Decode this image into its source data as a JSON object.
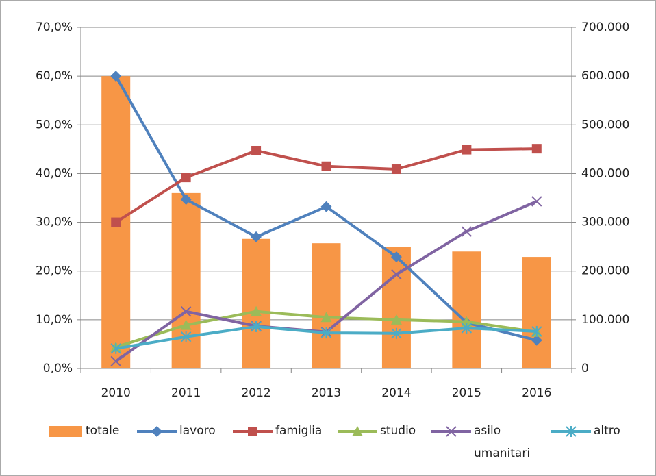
{
  "chart_data": {
    "type": "combo",
    "categories": [
      "2010",
      "2011",
      "2012",
      "2013",
      "2014",
      "2015",
      "2016"
    ],
    "series": [
      {
        "name": "totale",
        "type": "bar",
        "axis": "y2",
        "color": "#F79646",
        "values": [
          600000,
          360000,
          266000,
          257000,
          249000,
          240000,
          229000
        ]
      },
      {
        "name": "lavoro",
        "type": "line",
        "marker": "diamond",
        "color": "#4F81BD",
        "values": [
          60.0,
          34.7,
          27.0,
          33.2,
          22.9,
          9.4,
          5.8
        ]
      },
      {
        "name": "famiglia",
        "type": "line",
        "marker": "square",
        "color": "#C0504D",
        "values": [
          30.0,
          39.2,
          44.7,
          41.5,
          40.9,
          44.9,
          45.1
        ]
      },
      {
        "name": "studio",
        "type": "line",
        "marker": "triangle",
        "color": "#9BBB59",
        "values": [
          4.4,
          8.9,
          11.7,
          10.5,
          10.0,
          9.6,
          7.5
        ]
      },
      {
        "name": "asilo umanitari",
        "type": "line",
        "marker": "x",
        "color": "#8064A2",
        "values": [
          1.5,
          11.7,
          8.7,
          7.5,
          19.3,
          28.1,
          34.3
        ]
      },
      {
        "name": "altro",
        "type": "line",
        "marker": "star",
        "color": "#4BACC6",
        "values": [
          4.1,
          6.5,
          8.6,
          7.3,
          7.2,
          8.3,
          7.6
        ]
      }
    ],
    "ylim": [
      0,
      70
    ],
    "yticks": [
      {
        "value": 0,
        "label": "0,0%"
      },
      {
        "value": 10,
        "label": "10,0%"
      },
      {
        "value": 20,
        "label": "20,0%"
      },
      {
        "value": 30,
        "label": "30,0%"
      },
      {
        "value": 40,
        "label": "40,0%"
      },
      {
        "value": 50,
        "label": "50,0%"
      },
      {
        "value": 60,
        "label": "60,0%"
      },
      {
        "value": 70,
        "label": "70,0%"
      }
    ],
    "y2lim": [
      0,
      700000
    ],
    "y2ticks": [
      0,
      {
        "value": 100000,
        "label": "100.000"
      },
      {
        "value": 200000,
        "label": "200.000"
      },
      {
        "value": 300000,
        "label": "300.000"
      },
      {
        "value": 400000,
        "label": "400.000"
      },
      {
        "value": 500000,
        "label": "500.000"
      },
      {
        "value": 600000,
        "label": "600.000"
      },
      {
        "value": 700000,
        "label": "700.000"
      }
    ],
    "grid": true,
    "legend": "bottom"
  }
}
